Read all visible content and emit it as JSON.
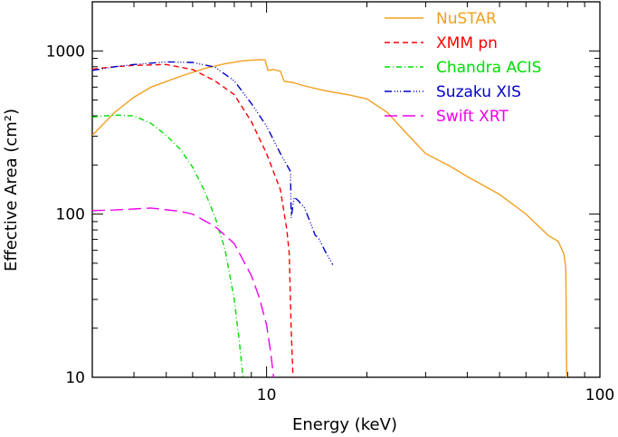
{
  "chart_data": {
    "type": "line",
    "title": "",
    "xlabel": "Energy (keV)",
    "ylabel": "Effective Area (cm²)",
    "xscale": "log",
    "yscale": "log",
    "xlim": [
      3,
      100
    ],
    "ylim": [
      10,
      2000
    ],
    "xticks": [
      {
        "value": 10,
        "label": "10"
      },
      {
        "value": 100,
        "label": "100"
      }
    ],
    "yticks": [
      {
        "value": 10,
        "label": "10"
      },
      {
        "value": 100,
        "label": "100"
      },
      {
        "value": 1000,
        "label": "1000"
      }
    ],
    "grid": false,
    "legend_position": "top-right",
    "series": [
      {
        "name": "NuSTAR",
        "color": "#f0a020",
        "dash": "solid",
        "points": [
          [
            3,
            304
          ],
          [
            3.5,
            420
          ],
          [
            4,
            520
          ],
          [
            4.5,
            600
          ],
          [
            5.5,
            698
          ],
          [
            6.5,
            780
          ],
          [
            7.5,
            835
          ],
          [
            8.5,
            870
          ],
          [
            9.5,
            885
          ],
          [
            9.9,
            880
          ],
          [
            10.1,
            760
          ],
          [
            10.5,
            770
          ],
          [
            11,
            750
          ],
          [
            11.3,
            650
          ],
          [
            12,
            640
          ],
          [
            13,
            610
          ],
          [
            15,
            570
          ],
          [
            17.5,
            540
          ],
          [
            20,
            508
          ],
          [
            23,
            420
          ],
          [
            26,
            320
          ],
          [
            30,
            235
          ],
          [
            35,
            200
          ],
          [
            40,
            170
          ],
          [
            50,
            132
          ],
          [
            60,
            100
          ],
          [
            70,
            74
          ],
          [
            75,
            68
          ],
          [
            78,
            57
          ],
          [
            79,
            47
          ],
          [
            79.5,
            10
          ]
        ]
      },
      {
        "name": "XMM pn",
        "color": "#ff0000",
        "dash": "6,4",
        "points": [
          [
            3,
            774
          ],
          [
            3.5,
            800
          ],
          [
            4,
            815
          ],
          [
            5,
            826
          ],
          [
            6,
            770
          ],
          [
            7,
            655
          ],
          [
            8,
            540
          ],
          [
            9,
            369
          ],
          [
            10,
            235
          ],
          [
            11,
            141
          ],
          [
            11.5,
            80
          ],
          [
            11.7,
            57
          ],
          [
            11.85,
            20
          ],
          [
            12,
            10
          ]
        ]
      },
      {
        "name": "Chandra ACIS",
        "color": "#00dd00",
        "dash": "6,3,1,3",
        "points": [
          [
            3,
            393
          ],
          [
            3.5,
            405
          ],
          [
            4,
            400
          ],
          [
            4.5,
            360
          ],
          [
            5,
            304
          ],
          [
            5.5,
            250
          ],
          [
            6,
            194
          ],
          [
            6.5,
            140
          ],
          [
            7,
            96
          ],
          [
            7.5,
            61
          ],
          [
            8,
            30
          ],
          [
            8.3,
            16
          ],
          [
            8.5,
            10
          ]
        ]
      },
      {
        "name": "Suzaku XIS",
        "color": "#0000cc",
        "dash": "8,3,1,2,1,2,1,3",
        "points": [
          [
            3,
            760
          ],
          [
            3.5,
            800
          ],
          [
            4,
            826
          ],
          [
            5,
            857
          ],
          [
            6,
            850
          ],
          [
            7,
            796
          ],
          [
            8,
            655
          ],
          [
            9,
            476
          ],
          [
            10,
            346
          ],
          [
            11,
            235
          ],
          [
            11.8,
            182
          ],
          [
            11.85,
            95
          ],
          [
            12.1,
            127
          ],
          [
            12.5,
            120
          ],
          [
            13,
            109
          ],
          [
            13.5,
            90
          ],
          [
            14,
            74
          ],
          [
            14.3,
            72
          ],
          [
            15,
            59
          ],
          [
            15.8,
            49
          ]
        ]
      },
      {
        "name": "Swift XRT",
        "color": "#ee00ee",
        "dash": "14,6",
        "points": [
          [
            3,
            105
          ],
          [
            3.5,
            106
          ],
          [
            4.5,
            109
          ],
          [
            5.5,
            104
          ],
          [
            6,
            100
          ],
          [
            7,
            84
          ],
          [
            8,
            66
          ],
          [
            9,
            42
          ],
          [
            9.5,
            31
          ],
          [
            10,
            21
          ],
          [
            10.3,
            14
          ],
          [
            10.5,
            10
          ]
        ]
      }
    ]
  }
}
